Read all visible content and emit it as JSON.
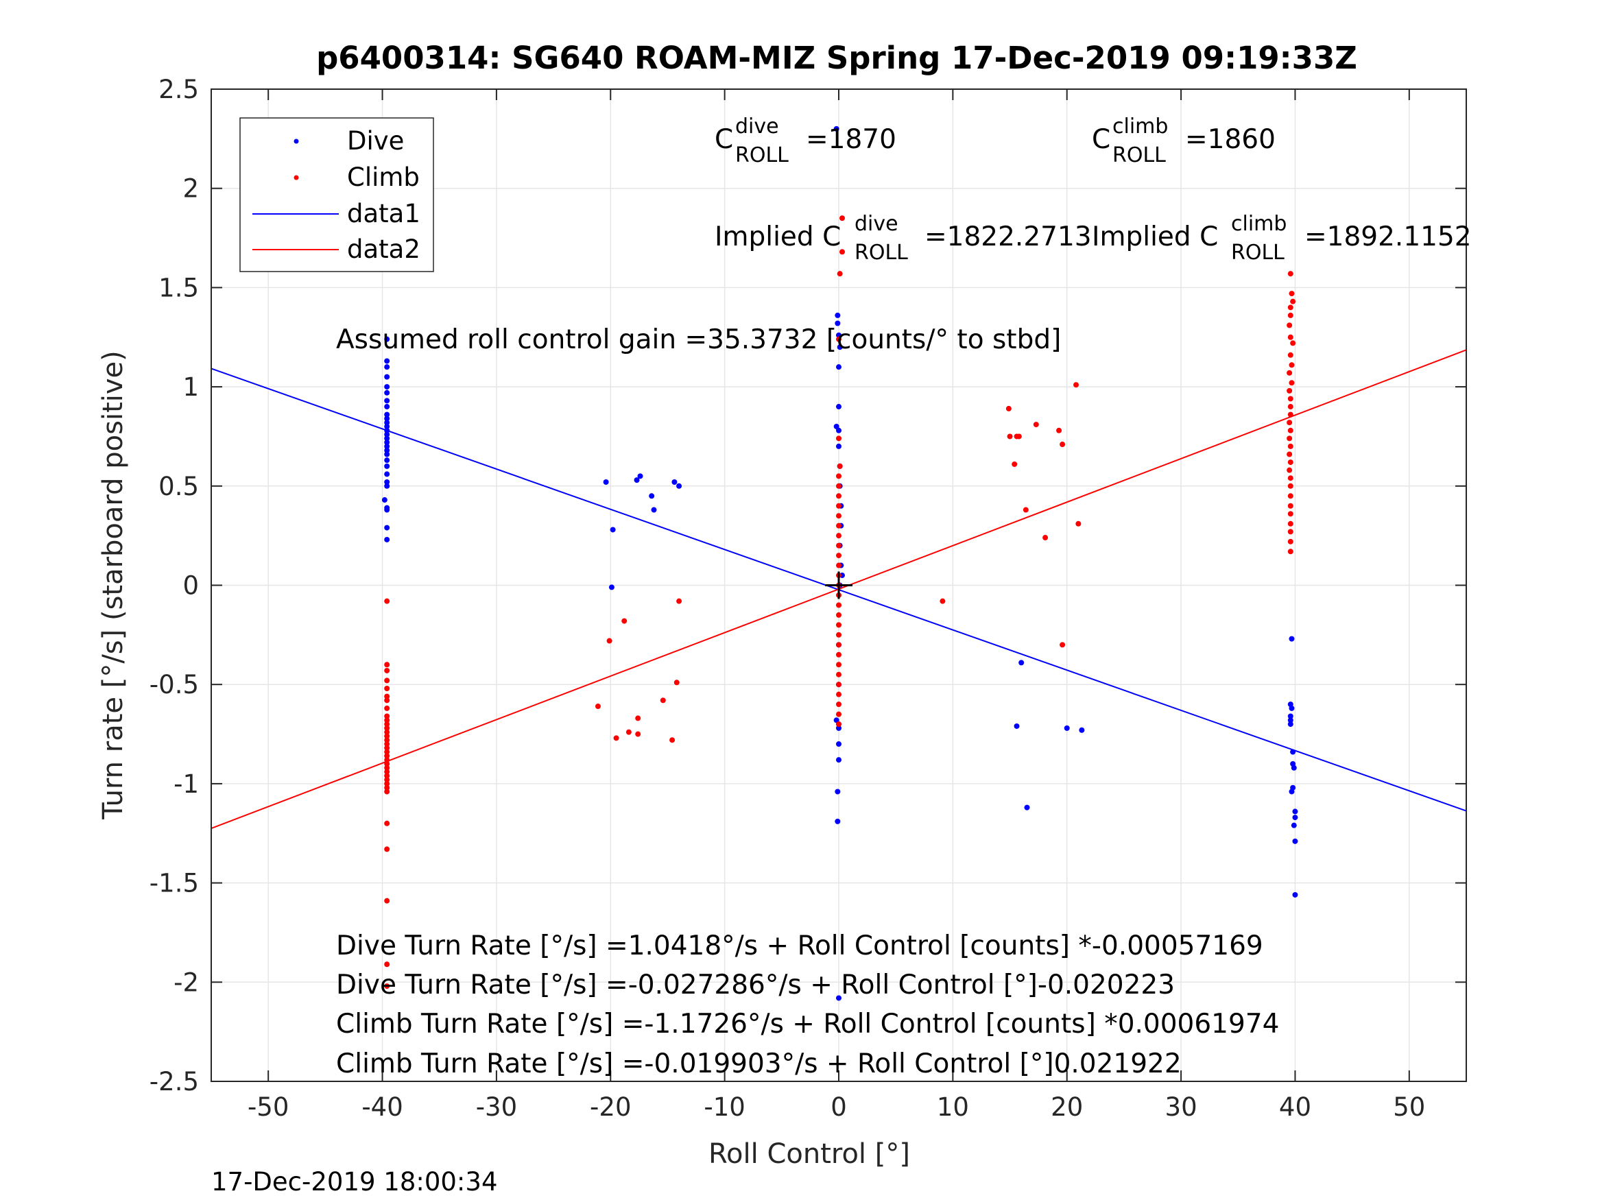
{
  "chart_data": {
    "type": "scatter",
    "title": "p6400314: SG640 ROAM-MIZ Spring 17-Dec-2019 09:19:33Z",
    "xlabel": "Roll Control [°]",
    "ylabel": "Turn rate [°/s] (starboard positive)",
    "xlim": [
      -55,
      55
    ],
    "ylim": [
      -2.5,
      2.5
    ],
    "xticks": [
      -50,
      -40,
      -30,
      -20,
      -10,
      0,
      10,
      20,
      30,
      40,
      50
    ],
    "yticks": [
      2.5,
      2,
      1.5,
      1,
      0.5,
      0,
      -0.5,
      -1,
      -1.5,
      -2,
      -2.5
    ],
    "xtick_labels": [
      "-50",
      "-40",
      "-30",
      "-20",
      "-10",
      "0",
      "10",
      "20",
      "30",
      "40",
      "50"
    ],
    "ytick_labels": [
      "2.5",
      "2",
      "1.5",
      "1",
      "0.5",
      "0",
      "-0.5",
      "-1",
      "-1.5",
      "-2",
      "-2.5"
    ],
    "grid": true,
    "legend_position": "top-left",
    "series": [
      {
        "name": "Dive",
        "kind": "points",
        "color": "#0000ff",
        "points": [
          [
            -39.6,
            1.24
          ],
          [
            -39.6,
            1.13
          ],
          [
            -39.6,
            1.1
          ],
          [
            -39.6,
            1.05
          ],
          [
            -39.6,
            1.0
          ],
          [
            -39.6,
            0.97
          ],
          [
            -39.6,
            0.93
          ],
          [
            -39.6,
            0.9
          ],
          [
            -39.6,
            0.86
          ],
          [
            -39.6,
            0.84
          ],
          [
            -39.6,
            0.82
          ],
          [
            -39.6,
            0.8
          ],
          [
            -39.6,
            0.78
          ],
          [
            -39.6,
            0.76
          ],
          [
            -39.6,
            0.74
          ],
          [
            -39.6,
            0.72
          ],
          [
            -39.6,
            0.7
          ],
          [
            -39.6,
            0.68
          ],
          [
            -39.6,
            0.66
          ],
          [
            -39.6,
            0.63
          ],
          [
            -39.6,
            0.6
          ],
          [
            -39.6,
            0.56
          ],
          [
            -39.6,
            0.52
          ],
          [
            -39.6,
            0.5
          ],
          [
            -39.8,
            0.43
          ],
          [
            -39.6,
            0.39
          ],
          [
            -39.6,
            0.38
          ],
          [
            -39.6,
            0.29
          ],
          [
            -39.6,
            0.23
          ],
          [
            -20.4,
            0.52
          ],
          [
            -19.8,
            0.28
          ],
          [
            -19.9,
            -0.01
          ],
          [
            -17.7,
            0.53
          ],
          [
            -17.4,
            0.55
          ],
          [
            -16.4,
            0.45
          ],
          [
            -16.2,
            0.38
          ],
          [
            -14.4,
            0.52
          ],
          [
            -14.0,
            0.5
          ],
          [
            -0.2,
            2.3
          ],
          [
            -0.1,
            1.36
          ],
          [
            -0.1,
            1.32
          ],
          [
            0.0,
            1.26
          ],
          [
            0.1,
            1.2
          ],
          [
            0.0,
            1.1
          ],
          [
            0.0,
            0.9
          ],
          [
            -0.2,
            0.8
          ],
          [
            0.0,
            0.78
          ],
          [
            0.0,
            0.7
          ],
          [
            0.1,
            0.6
          ],
          [
            0.1,
            0.5
          ],
          [
            0.2,
            0.4
          ],
          [
            0.2,
            0.3
          ],
          [
            0.1,
            0.2
          ],
          [
            0.2,
            0.1
          ],
          [
            0.3,
            0.05
          ],
          [
            0.1,
            0.0
          ],
          [
            0.0,
            -0.3
          ],
          [
            0.0,
            -0.5
          ],
          [
            -0.2,
            -0.68
          ],
          [
            0.0,
            -0.7
          ],
          [
            0.0,
            -0.72
          ],
          [
            0.0,
            -0.8
          ],
          [
            0.0,
            -0.88
          ],
          [
            -0.1,
            -1.04
          ],
          [
            -0.1,
            -1.19
          ],
          [
            0.0,
            -2.08
          ],
          [
            15.6,
            -0.71
          ],
          [
            16.0,
            -0.39
          ],
          [
            16.5,
            -1.12
          ],
          [
            20.0,
            -0.72
          ],
          [
            21.3,
            -0.73
          ],
          [
            39.7,
            -0.27
          ],
          [
            39.6,
            -0.6
          ],
          [
            39.7,
            -0.62
          ],
          [
            39.6,
            -0.66
          ],
          [
            39.6,
            -0.68
          ],
          [
            39.6,
            -0.7
          ],
          [
            39.8,
            -0.84
          ],
          [
            39.8,
            -0.9
          ],
          [
            39.9,
            -0.92
          ],
          [
            39.8,
            -1.02
          ],
          [
            39.7,
            -1.04
          ],
          [
            40.0,
            -1.14
          ],
          [
            40.0,
            -1.17
          ],
          [
            39.9,
            -1.21
          ],
          [
            40.0,
            -1.29
          ],
          [
            40.0,
            -1.56
          ]
        ]
      },
      {
        "name": "Climb",
        "kind": "points",
        "color": "#ff0000",
        "points": [
          [
            -39.6,
            -0.08
          ],
          [
            -39.6,
            -0.4
          ],
          [
            -39.6,
            -0.43
          ],
          [
            -39.6,
            -0.48
          ],
          [
            -39.6,
            -0.52
          ],
          [
            -39.6,
            -0.56
          ],
          [
            -39.6,
            -0.58
          ],
          [
            -39.6,
            -0.62
          ],
          [
            -39.6,
            -0.66
          ],
          [
            -39.6,
            -0.68
          ],
          [
            -39.6,
            -0.7
          ],
          [
            -39.6,
            -0.72
          ],
          [
            -39.6,
            -0.74
          ],
          [
            -39.6,
            -0.76
          ],
          [
            -39.6,
            -0.78
          ],
          [
            -39.6,
            -0.8
          ],
          [
            -39.6,
            -0.82
          ],
          [
            -39.6,
            -0.84
          ],
          [
            -39.6,
            -0.86
          ],
          [
            -39.6,
            -0.88
          ],
          [
            -39.6,
            -0.9
          ],
          [
            -39.6,
            -0.92
          ],
          [
            -39.6,
            -0.94
          ],
          [
            -39.6,
            -0.96
          ],
          [
            -39.6,
            -0.98
          ],
          [
            -39.6,
            -1.0
          ],
          [
            -39.6,
            -1.02
          ],
          [
            -39.6,
            -1.04
          ],
          [
            -39.6,
            -1.2
          ],
          [
            -39.6,
            -1.33
          ],
          [
            -39.6,
            -1.59
          ],
          [
            -39.6,
            -1.91
          ],
          [
            -39.6,
            -2.02
          ],
          [
            -21.1,
            -0.61
          ],
          [
            -20.1,
            -0.28
          ],
          [
            -19.5,
            -0.77
          ],
          [
            -18.8,
            -0.18
          ],
          [
            -18.4,
            -0.74
          ],
          [
            -17.6,
            -0.75
          ],
          [
            -17.6,
            -0.67
          ],
          [
            -15.4,
            -0.58
          ],
          [
            -14.6,
            -0.78
          ],
          [
            -14.2,
            -0.49
          ],
          [
            -14.0,
            -0.08
          ],
          [
            0.3,
            1.85
          ],
          [
            0.3,
            1.68
          ],
          [
            0.1,
            1.57
          ],
          [
            0.0,
            1.24
          ],
          [
            0.0,
            0.74
          ],
          [
            0.1,
            0.6
          ],
          [
            0.0,
            0.55
          ],
          [
            0.0,
            0.5
          ],
          [
            0.0,
            0.45
          ],
          [
            0.0,
            0.4
          ],
          [
            0.0,
            0.35
          ],
          [
            0.0,
            0.3
          ],
          [
            0.0,
            0.25
          ],
          [
            0.0,
            0.2
          ],
          [
            0.0,
            0.15
          ],
          [
            0.0,
            0.1
          ],
          [
            0.0,
            0.05
          ],
          [
            0.0,
            0.0
          ],
          [
            0.0,
            -0.05
          ],
          [
            0.0,
            -0.1
          ],
          [
            0.0,
            -0.15
          ],
          [
            0.0,
            -0.2
          ],
          [
            0.0,
            -0.25
          ],
          [
            0.0,
            -0.3
          ],
          [
            0.0,
            -0.35
          ],
          [
            0.0,
            -0.4
          ],
          [
            0.0,
            -0.45
          ],
          [
            0.0,
            -0.5
          ],
          [
            0.0,
            -0.55
          ],
          [
            0.0,
            -0.6
          ],
          [
            0.0,
            -0.65
          ],
          [
            0.0,
            -0.7
          ],
          [
            9.1,
            -0.08
          ],
          [
            14.9,
            0.89
          ],
          [
            15.0,
            0.75
          ],
          [
            15.4,
            0.61
          ],
          [
            15.6,
            0.75
          ],
          [
            15.8,
            0.75
          ],
          [
            16.4,
            0.38
          ],
          [
            17.3,
            0.81
          ],
          [
            18.1,
            0.24
          ],
          [
            19.3,
            0.78
          ],
          [
            19.6,
            -0.3
          ],
          [
            19.6,
            0.71
          ],
          [
            20.8,
            1.01
          ],
          [
            21.0,
            0.31
          ],
          [
            39.6,
            1.57
          ],
          [
            39.7,
            1.47
          ],
          [
            39.8,
            1.43
          ],
          [
            39.6,
            1.4
          ],
          [
            39.6,
            1.36
          ],
          [
            39.5,
            1.31
          ],
          [
            39.6,
            1.25
          ],
          [
            39.8,
            1.22
          ],
          [
            39.6,
            1.16
          ],
          [
            39.7,
            1.11
          ],
          [
            39.5,
            1.07
          ],
          [
            39.7,
            1.02
          ],
          [
            39.5,
            0.98
          ],
          [
            39.6,
            0.94
          ],
          [
            39.6,
            0.9
          ],
          [
            39.6,
            0.86
          ],
          [
            39.5,
            0.82
          ],
          [
            39.6,
            0.78
          ],
          [
            39.5,
            0.74
          ],
          [
            39.6,
            0.7
          ],
          [
            39.5,
            0.66
          ],
          [
            39.6,
            0.62
          ],
          [
            39.5,
            0.58
          ],
          [
            39.6,
            0.54
          ],
          [
            39.6,
            0.5
          ],
          [
            39.6,
            0.45
          ],
          [
            39.6,
            0.4
          ],
          [
            39.6,
            0.36
          ],
          [
            39.6,
            0.31
          ],
          [
            39.6,
            0.27
          ],
          [
            39.6,
            0.22
          ],
          [
            39.6,
            0.17
          ]
        ]
      },
      {
        "name": "data1",
        "kind": "line",
        "color": "#0000ff",
        "x": [
          -55,
          55
        ],
        "y": [
          1.092,
          -1.137
        ]
      },
      {
        "name": "data2",
        "kind": "line",
        "color": "#ff0000",
        "x": [
          -55,
          55
        ],
        "y": [
          -1.225,
          1.186
        ]
      }
    ],
    "marker": {
      "x": 0,
      "y": 0,
      "symbol": "+",
      "color": "#000000"
    },
    "annotations": {
      "c_dive": {
        "base": "C",
        "sup": "dive",
        "sub": "ROLL",
        "value": "=1870"
      },
      "c_climb": {
        "base": "C",
        "sup": "climb",
        "sub": "ROLL",
        "value": "=1860"
      },
      "implied_dive": {
        "prefix": "Implied C",
        "sup": "dive",
        "sub": "ROLL",
        "value": "=1822.2713"
      },
      "implied_climb": {
        "prefix": "Implied C",
        "sup": "climb",
        "sub": "ROLL",
        "value": "=1892.1152"
      },
      "gain": "Assumed roll control gain =35.3732 [counts/° to stbd]",
      "fit_lines": [
        "Dive Turn Rate [°/s] =1.0418°/s + Roll Control [counts] *-0.00057169",
        "Dive Turn Rate [°/s] =-0.027286°/s + Roll Control [°]-0.020223",
        "Climb Turn Rate [°/s] =-1.1726°/s + Roll Control [counts] *0.00061974",
        "Climb Turn Rate [°/s] =-0.019903°/s + Roll Control [°]0.021922"
      ]
    }
  },
  "footer": {
    "timestamp": "17-Dec-2019 18:00:34"
  }
}
